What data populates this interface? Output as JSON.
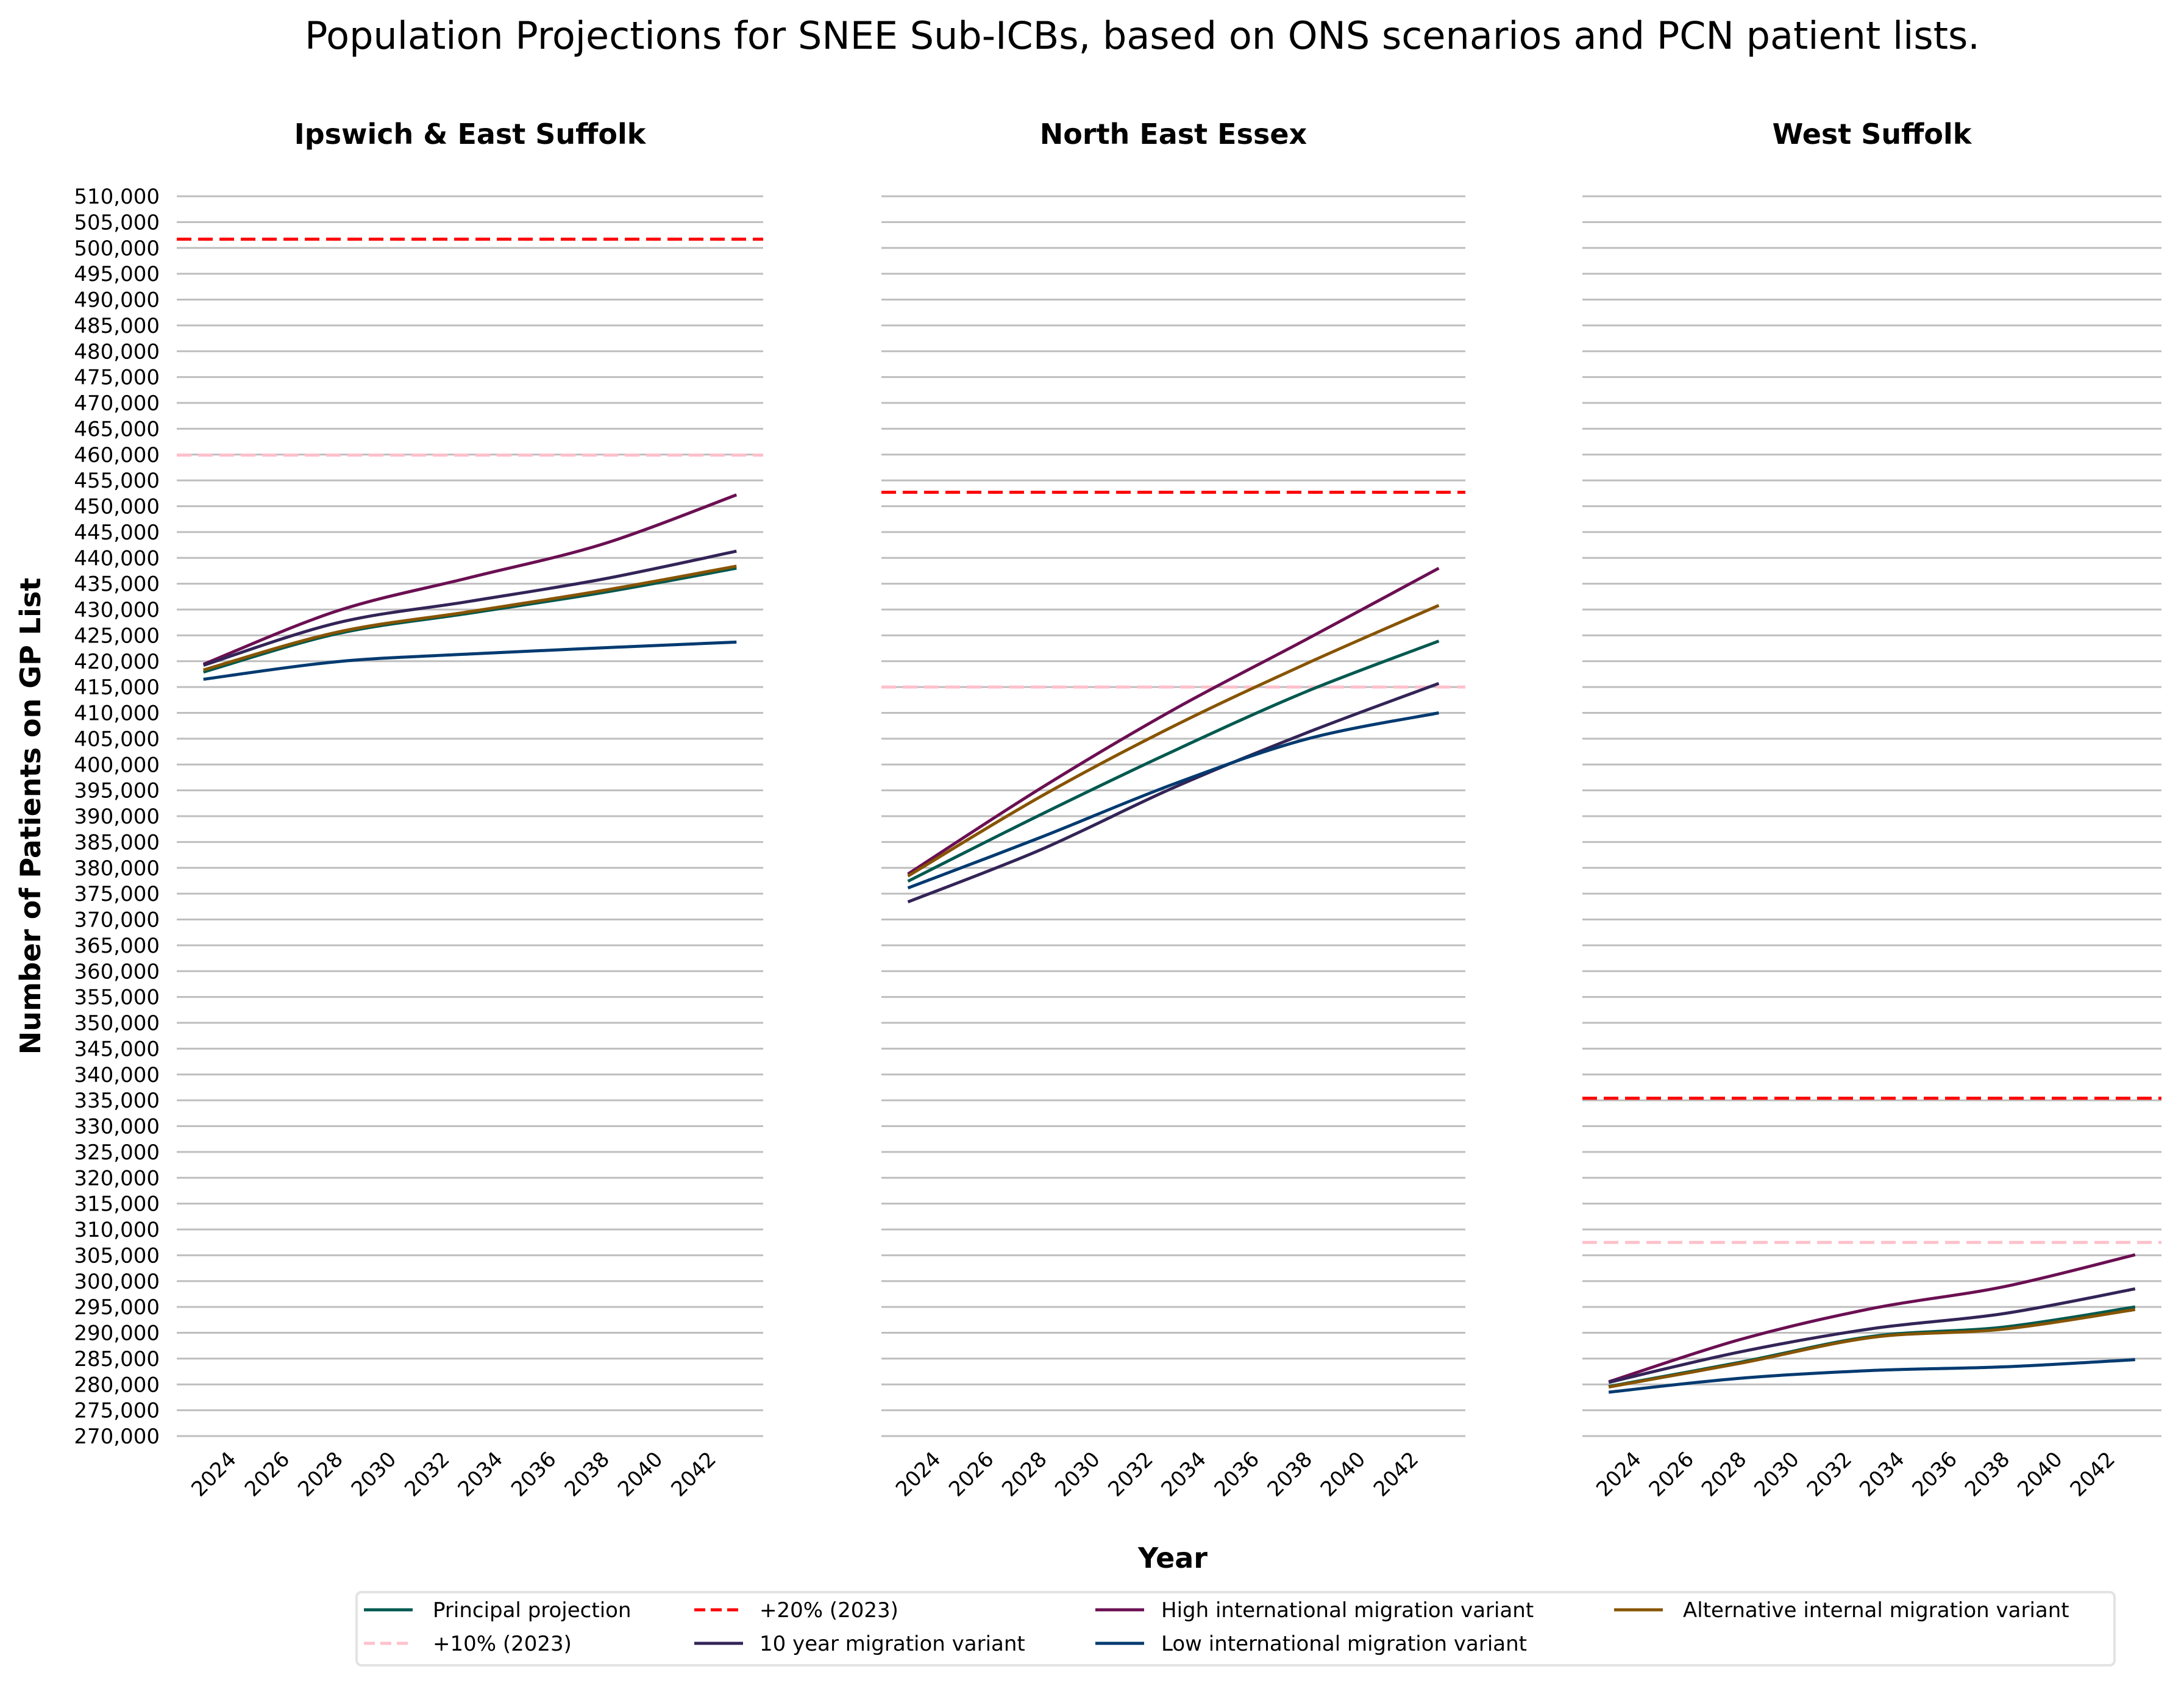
{
  "figure": {
    "title": "Population Projections for SNEE Sub-ICBs, based on ONS scenarios and PCN patient lists.",
    "xlabel": "Year",
    "ylabel": "Number of Patients on GP List"
  },
  "legend": {
    "placement": "bottom-center",
    "columns": 4,
    "entries": [
      {
        "key": "principal",
        "label": "Principal projection",
        "color": "#00594f",
        "style": "solid"
      },
      {
        "key": "plus10",
        "label": "+10% (2023)",
        "color": "#ffc0cb",
        "style": "dashed"
      },
      {
        "key": "plus20",
        "label": "+20% (2023)",
        "color": "#ff0000",
        "style": "dashed"
      },
      {
        "key": "tenyear",
        "label": "10 year migration variant",
        "color": "#332457",
        "style": "solid"
      },
      {
        "key": "high",
        "label": "High international migration variant",
        "color": "#6b0f52",
        "style": "solid"
      },
      {
        "key": "low",
        "label": "Low international migration variant",
        "color": "#003a70",
        "style": "solid"
      },
      {
        "key": "alt",
        "label": "Alternative internal migration variant",
        "color": "#875400",
        "style": "solid"
      }
    ]
  },
  "chart_data": [
    {
      "type": "line",
      "title": "Ipswich & East Suffolk",
      "x": [
        2023,
        2028,
        2033,
        2038,
        2043
      ],
      "xticks": [
        2024,
        2026,
        2028,
        2030,
        2032,
        2034,
        2036,
        2038,
        2040,
        2042
      ],
      "xlim": [
        2022,
        2044
      ],
      "ylim": [
        270000,
        510000
      ],
      "ytick_step": 5000,
      "grid": "horizontal",
      "series": [
        {
          "key": "principal",
          "name": "Principal projection",
          "values": [
            417900,
            425300,
            429300,
            433300,
            438000
          ]
        },
        {
          "key": "high",
          "name": "High international migration variant",
          "values": [
            419400,
            429700,
            436200,
            442700,
            452200
          ]
        },
        {
          "key": "tenyear",
          "name": "10 year migration variant",
          "values": [
            419200,
            427400,
            431600,
            435900,
            441300
          ]
        },
        {
          "key": "low",
          "name": "Low international migration variant",
          "values": [
            416500,
            419900,
            421400,
            422600,
            423700
          ]
        },
        {
          "key": "alt",
          "name": "Alternative internal migration variant",
          "values": [
            418300,
            425600,
            429600,
            433700,
            438400
          ]
        }
      ],
      "reference_lines": [
        {
          "key": "plus20",
          "name": "+20% (2023)",
          "value": 501700
        },
        {
          "key": "plus10",
          "name": "+10% (2023)",
          "value": 459900
        }
      ]
    },
    {
      "type": "line",
      "title": "North East Essex",
      "x": [
        2023,
        2028,
        2033,
        2038,
        2043
      ],
      "xticks": [
        2024,
        2026,
        2028,
        2030,
        2032,
        2034,
        2036,
        2038,
        2040,
        2042
      ],
      "xlim": [
        2022,
        2044
      ],
      "ylim": [
        270000,
        510000
      ],
      "ytick_step": 5000,
      "grid": "horizontal",
      "series": [
        {
          "key": "principal",
          "name": "Principal projection",
          "values": [
            377400,
            390300,
            402600,
            414100,
            423900
          ]
        },
        {
          "key": "high",
          "name": "High international migration variant",
          "values": [
            378800,
            395400,
            410600,
            424200,
            438000
          ]
        },
        {
          "key": "tenyear",
          "name": "10 year migration variant",
          "values": [
            373400,
            383500,
            395500,
            406100,
            415700
          ]
        },
        {
          "key": "low",
          "name": "Low international migration variant",
          "values": [
            376100,
            385900,
            396200,
            404900,
            410000
          ]
        },
        {
          "key": "alt",
          "name": "Alternative internal migration variant",
          "values": [
            378400,
            393800,
            407400,
            419500,
            430800
          ]
        }
      ],
      "reference_lines": [
        {
          "key": "plus20",
          "name": "+20% (2023)",
          "value": 452700
        },
        {
          "key": "plus10",
          "name": "+10% (2023)",
          "value": 415000
        }
      ]
    },
    {
      "type": "line",
      "title": "West Suffolk",
      "x": [
        2023,
        2028,
        2033,
        2038,
        2043
      ],
      "xticks": [
        2024,
        2026,
        2028,
        2030,
        2032,
        2034,
        2036,
        2038,
        2040,
        2042
      ],
      "xlim": [
        2022,
        2044
      ],
      "ylim": [
        270000,
        510000
      ],
      "ytick_step": 5000,
      "grid": "horizontal",
      "series": [
        {
          "key": "principal",
          "name": "Principal projection",
          "values": [
            279600,
            284300,
            289300,
            291100,
            295000
          ]
        },
        {
          "key": "high",
          "name": "High international migration variant",
          "values": [
            280500,
            288700,
            294700,
            298900,
            305100
          ]
        },
        {
          "key": "tenyear",
          "name": "10 year migration variant",
          "values": [
            280400,
            286300,
            290800,
            293700,
            298500
          ]
        },
        {
          "key": "low",
          "name": "Low international migration variant",
          "values": [
            278500,
            281200,
            282700,
            283400,
            284800
          ]
        },
        {
          "key": "alt",
          "name": "Alternative internal migration variant",
          "values": [
            279500,
            284100,
            289100,
            290700,
            294500
          ]
        }
      ],
      "reference_lines": [
        {
          "key": "plus20",
          "name": "+20% (2023)",
          "value": 335400
        },
        {
          "key": "plus10",
          "name": "+10% (2023)",
          "value": 307500
        }
      ]
    }
  ]
}
